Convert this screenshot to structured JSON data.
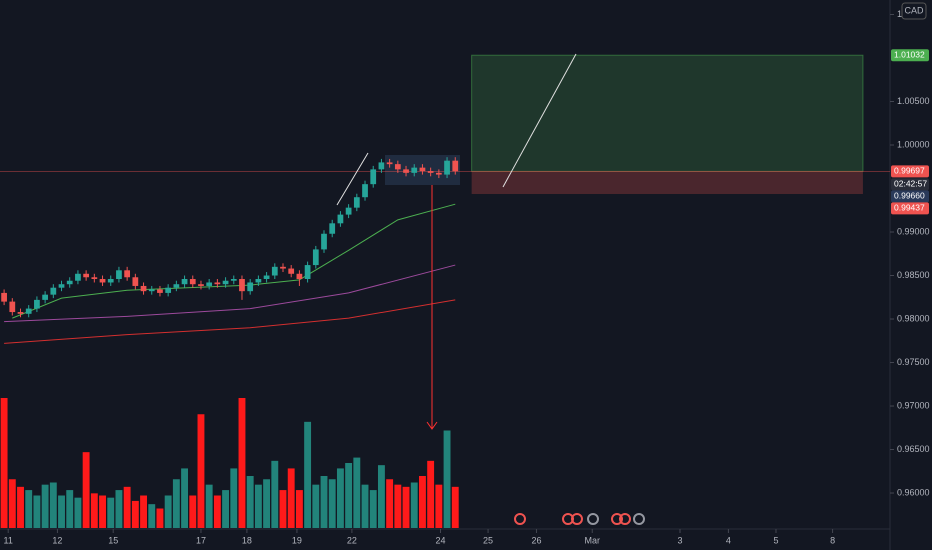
{
  "chart_data": {
    "type": "candlestick",
    "currency": "CAD",
    "ylim": [
      0.95598,
      1.016667
    ],
    "xlim": [
      -0.5,
      108
    ],
    "yticks": [
      {
        "value": 1.015,
        "label": "1"
      },
      {
        "value": 1.005,
        "label": "1.00500"
      },
      {
        "value": 1.0,
        "label": "1.00000"
      },
      {
        "value": 0.99,
        "label": "0.99000"
      },
      {
        "value": 0.985,
        "label": "0.98500"
      },
      {
        "value": 0.98,
        "label": "0.98000"
      },
      {
        "value": 0.975,
        "label": "0.97500"
      },
      {
        "value": 0.97,
        "label": "0.97000"
      },
      {
        "value": 0.965,
        "label": "0.96500"
      },
      {
        "value": 0.96,
        "label": "0.96000"
      }
    ],
    "xticks": [
      {
        "value": 0.5,
        "label": "11"
      },
      {
        "value": 6.5,
        "label": "12"
      },
      {
        "value": 13.3,
        "label": "15"
      },
      {
        "value": 24,
        "label": "17"
      },
      {
        "value": 29.6,
        "label": "18"
      },
      {
        "value": 35.7,
        "label": "19"
      },
      {
        "value": 42.4,
        "label": "22"
      },
      {
        "value": 53.2,
        "label": "24"
      },
      {
        "value": 59,
        "label": "25"
      },
      {
        "value": 64.9,
        "label": "26"
      },
      {
        "value": 71.7,
        "label": "Mar"
      },
      {
        "value": 82.4,
        "label": "3"
      },
      {
        "value": 88.3,
        "label": "4"
      },
      {
        "value": 94.1,
        "label": "5"
      },
      {
        "value": 101,
        "label": "8"
      }
    ],
    "up_color": "#26a69a",
    "down_color": "#ef5350",
    "volume_up_color": "#22847b",
    "volume_down_color": "#ff1a1a",
    "open": [
      0.983,
      0.982,
      0.9808,
      0.9806,
      0.9812,
      0.9822,
      0.9828,
      0.9836,
      0.984,
      0.9844,
      0.9852,
      0.9848,
      0.9846,
      0.9842,
      0.9846,
      0.9856,
      0.9848,
      0.9838,
      0.9832,
      0.9834,
      0.983,
      0.9836,
      0.984,
      0.9846,
      0.984,
      0.9838,
      0.9842,
      0.984,
      0.9844,
      0.9846,
      0.9832,
      0.9842,
      0.9846,
      0.985,
      0.986,
      0.9858,
      0.9852,
      0.9846,
      0.9862,
      0.988,
      0.9898,
      0.991,
      0.992,
      0.9928,
      0.994,
      0.9955,
      0.9972,
      0.998,
      0.9978,
      0.9972,
      0.9968,
      0.9974,
      0.997,
      0.9968,
      0.9966,
      0.9982
    ],
    "high": [
      0.9834,
      0.9824,
      0.9812,
      0.9816,
      0.9826,
      0.9832,
      0.984,
      0.9844,
      0.9848,
      0.9856,
      0.9856,
      0.9852,
      0.985,
      0.985,
      0.986,
      0.986,
      0.9852,
      0.9842,
      0.9838,
      0.9838,
      0.984,
      0.9844,
      0.985,
      0.985,
      0.9844,
      0.9846,
      0.9846,
      0.9848,
      0.985,
      0.985,
      0.9846,
      0.985,
      0.9854,
      0.9864,
      0.9864,
      0.9862,
      0.9856,
      0.9866,
      0.9884,
      0.9902,
      0.9914,
      0.9924,
      0.9932,
      0.9944,
      0.9959,
      0.9976,
      0.9984,
      0.9984,
      0.9982,
      0.9976,
      0.9978,
      0.9978,
      0.9974,
      0.9972,
      0.9986,
      0.9986
    ],
    "low": [
      0.9816,
      0.9804,
      0.9802,
      0.9802,
      0.9808,
      0.9818,
      0.9824,
      0.9832,
      0.9836,
      0.984,
      0.9844,
      0.9842,
      0.9838,
      0.9838,
      0.9842,
      0.9844,
      0.9834,
      0.9828,
      0.9828,
      0.9826,
      0.9826,
      0.9832,
      0.9836,
      0.9836,
      0.9834,
      0.9834,
      0.9836,
      0.9836,
      0.984,
      0.9822,
      0.9828,
      0.9838,
      0.9842,
      0.9846,
      0.9854,
      0.9848,
      0.9838,
      0.9842,
      0.9858,
      0.9876,
      0.9894,
      0.9906,
      0.9916,
      0.9924,
      0.9936,
      0.9951,
      0.9968,
      0.9974,
      0.9968,
      0.9964,
      0.9964,
      0.9966,
      0.9964,
      0.9962,
      0.9962,
      0.9966
    ],
    "close": [
      0.982,
      0.9808,
      0.9806,
      0.9812,
      0.9822,
      0.9828,
      0.9836,
      0.984,
      0.9844,
      0.9852,
      0.9848,
      0.9846,
      0.9842,
      0.9846,
      0.9856,
      0.9848,
      0.9838,
      0.9832,
      0.9834,
      0.983,
      0.9836,
      0.984,
      0.9846,
      0.984,
      0.9838,
      0.9842,
      0.984,
      0.9844,
      0.9846,
      0.9832,
      0.9842,
      0.9846,
      0.985,
      0.986,
      0.9858,
      0.9852,
      0.9846,
      0.9862,
      0.988,
      0.9898,
      0.991,
      0.992,
      0.9928,
      0.994,
      0.9955,
      0.9972,
      0.998,
      0.9978,
      0.9972,
      0.9968,
      0.9974,
      0.997,
      0.9968,
      0.9966,
      0.9982,
      0.99697
    ],
    "volume": [
      120,
      45,
      38,
      35,
      30,
      40,
      42,
      30,
      35,
      28,
      70,
      32,
      30,
      28,
      35,
      38,
      25,
      30,
      22,
      18,
      30,
      45,
      55,
      30,
      105,
      40,
      30,
      35,
      55,
      120,
      48,
      40,
      45,
      62,
      35,
      55,
      35,
      98,
      40,
      48,
      45,
      55,
      60,
      65,
      40,
      35,
      58,
      45,
      40,
      38,
      42,
      48,
      62,
      40,
      90,
      38
    ],
    "moving_averages": [
      {
        "color": "#4caf50",
        "x": [
          1,
          7,
          15,
          30,
          36,
          42,
          48,
          55
        ],
        "values": [
          0.9801,
          0.9824,
          0.9833,
          0.9839,
          0.9845,
          0.9879,
          0.9914,
          0.9932
        ]
      },
      {
        "color": "#9c4a9c",
        "x": [
          0,
          15,
          30,
          42,
          55
        ],
        "values": [
          0.9797,
          0.9803,
          0.9812,
          0.983,
          0.9862
        ]
      },
      {
        "color": "#d32f2f",
        "x": [
          0,
          15,
          30,
          42,
          55
        ],
        "values": [
          0.9772,
          0.9782,
          0.979,
          0.9801,
          0.9822
        ]
      }
    ],
    "position": {
      "x_start": 57,
      "x_end": 104.7,
      "target": 1.01032,
      "entry": 0.99697,
      "stop": 0.99437
    },
    "price_tags": [
      {
        "label": "1.01032",
        "color": "#4caf50"
      },
      {
        "label": "0.99697",
        "color": "#ef5350"
      },
      {
        "label": "02:42:57",
        "color": "#2a2e39"
      },
      {
        "label": "0.99660",
        "color": "#2a3a5a"
      },
      {
        "label": "0.99437",
        "color": "#ef5350"
      }
    ]
  }
}
